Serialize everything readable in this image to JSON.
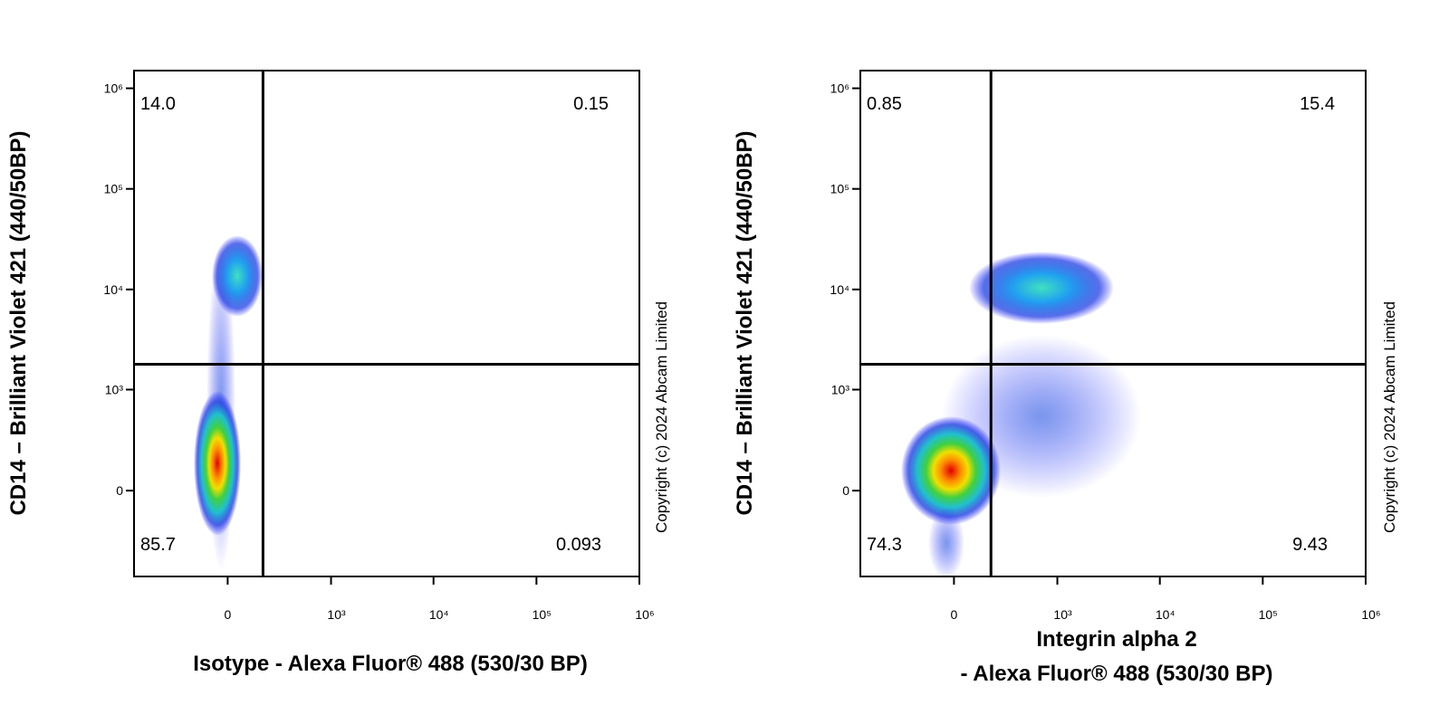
{
  "chart_data": [
    {
      "type": "flow-quadrant",
      "xlabel": [
        "Isotype - Alexa Fluor® 488 (530/30 BP)"
      ],
      "ylabel": "CD14 – Brilliant Violet 421 (440/50BP)",
      "copyright": "Copyright (c) 2024 Abcam Limited",
      "quadrant_labels": [
        "14.0",
        "0.15",
        "85.7",
        "0.093"
      ],
      "xlim": [
        -800,
        1000000
      ],
      "ylim": [
        -700,
        1500000
      ],
      "xticks": [
        0,
        {
          "value": 1000,
          "label": "10³"
        },
        {
          "value": 10000,
          "label": "10⁴"
        },
        {
          "value": 100000,
          "label": "10⁵"
        },
        {
          "value": 1000000,
          "label": "10⁶"
        }
      ],
      "yticks": [
        0,
        {
          "value": 1000,
          "label": "10³"
        },
        {
          "value": 10000,
          "label": "10⁴"
        },
        {
          "value": 100000,
          "label": "10⁵"
        },
        {
          "value": 1000000,
          "label": "10⁶"
        }
      ],
      "gate": {
        "x": 175,
        "y": 1800
      }
    },
    {
      "type": "flow-quadrant",
      "xlabel": [
        "Integrin alpha 2",
        "- Alexa Fluor® 488 (530/30 BP)"
      ],
      "ylabel": "CD14 – Brilliant Violet 421 (440/50BP)",
      "copyright": "Copyright (c) 2024 Abcam Limited",
      "quadrant_labels": [
        "0.85",
        "15.4",
        "74.3",
        "9.43"
      ],
      "xlim": [
        -800,
        1000000
      ],
      "ylim": [
        -700,
        1500000
      ],
      "xticks": [
        0,
        {
          "value": 1000,
          "label": "10³"
        },
        {
          "value": 10000,
          "label": "10⁴"
        },
        {
          "value": 100000,
          "label": "10⁵"
        },
        {
          "value": 1000000,
          "label": "10⁶"
        }
      ],
      "yticks": [
        0,
        {
          "value": 1000,
          "label": "10³"
        },
        {
          "value": 10000,
          "label": "10⁴"
        },
        {
          "value": 100000,
          "label": "10⁵"
        },
        {
          "value": 1000000,
          "label": "10⁶"
        }
      ],
      "gate": {
        "x": 185,
        "y": 1800
      }
    }
  ]
}
